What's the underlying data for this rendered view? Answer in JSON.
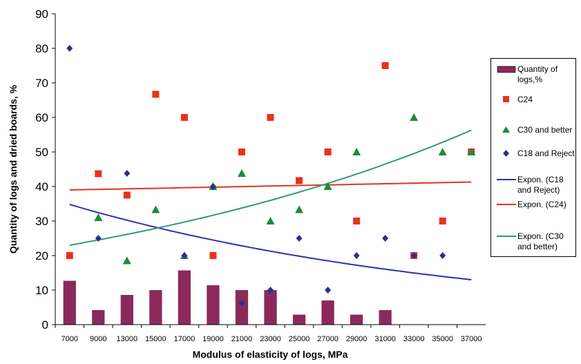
{
  "chart_data": {
    "type": "bar",
    "categories": [
      "7000",
      "9000",
      "13000",
      "15000",
      "17000",
      "19000",
      "21000",
      "23000",
      "25000",
      "27000",
      "29000",
      "31000",
      "33000",
      "35000",
      "37000"
    ],
    "ylabel": "Quantity of logs and dried boards, %",
    "xlabel": "Modulus of elasticity of logs, MPa",
    "ylim": [
      0,
      90
    ],
    "yticks": [
      "0",
      "10",
      "20",
      "30",
      "40",
      "50",
      "60",
      "70",
      "80",
      "90"
    ],
    "grid": false,
    "legend_placement": "right",
    "series": [
      {
        "name": "Quantity of logs,%",
        "kind": "bar",
        "color": "#8b2a5a",
        "values": [
          12.7,
          4.2,
          8.6,
          10.0,
          15.7,
          11.4,
          10.0,
          10.0,
          2.9,
          7.0,
          2.9,
          4.2,
          null,
          null,
          null
        ]
      },
      {
        "name": "C24",
        "kind": "square",
        "color": "#e8321e",
        "values": [
          20,
          43.7,
          37.5,
          66.7,
          60,
          20,
          50,
          60,
          41.7,
          50,
          30,
          75,
          20,
          30,
          50
        ]
      },
      {
        "name": "C30 and better",
        "kind": "triangle",
        "color": "#1f8a3a",
        "values": [
          null,
          31,
          18.5,
          33.3,
          20,
          40,
          43.8,
          30,
          33.3,
          40,
          50,
          null,
          60,
          50,
          50
        ]
      },
      {
        "name": "C18 and Reject",
        "kind": "diamond",
        "color": "#2b2f8f",
        "values": [
          80,
          25,
          43.8,
          null,
          20,
          40,
          6.2,
          10,
          25,
          10,
          20,
          25,
          20,
          20,
          null
        ]
      },
      {
        "name": "Expon. (C18 and Reject)",
        "kind": "trend",
        "color": "#2f2fb0",
        "start": 34.8,
        "end": 13.0
      },
      {
        "name": "Expon. (C24)",
        "kind": "trend",
        "color": "#e8321e",
        "start": 39.0,
        "end": 41.3
      },
      {
        "name": "Expon. (C30 and better)",
        "kind": "trend",
        "color": "#2e9a78",
        "start": 23.0,
        "end": 56.3
      }
    ]
  }
}
